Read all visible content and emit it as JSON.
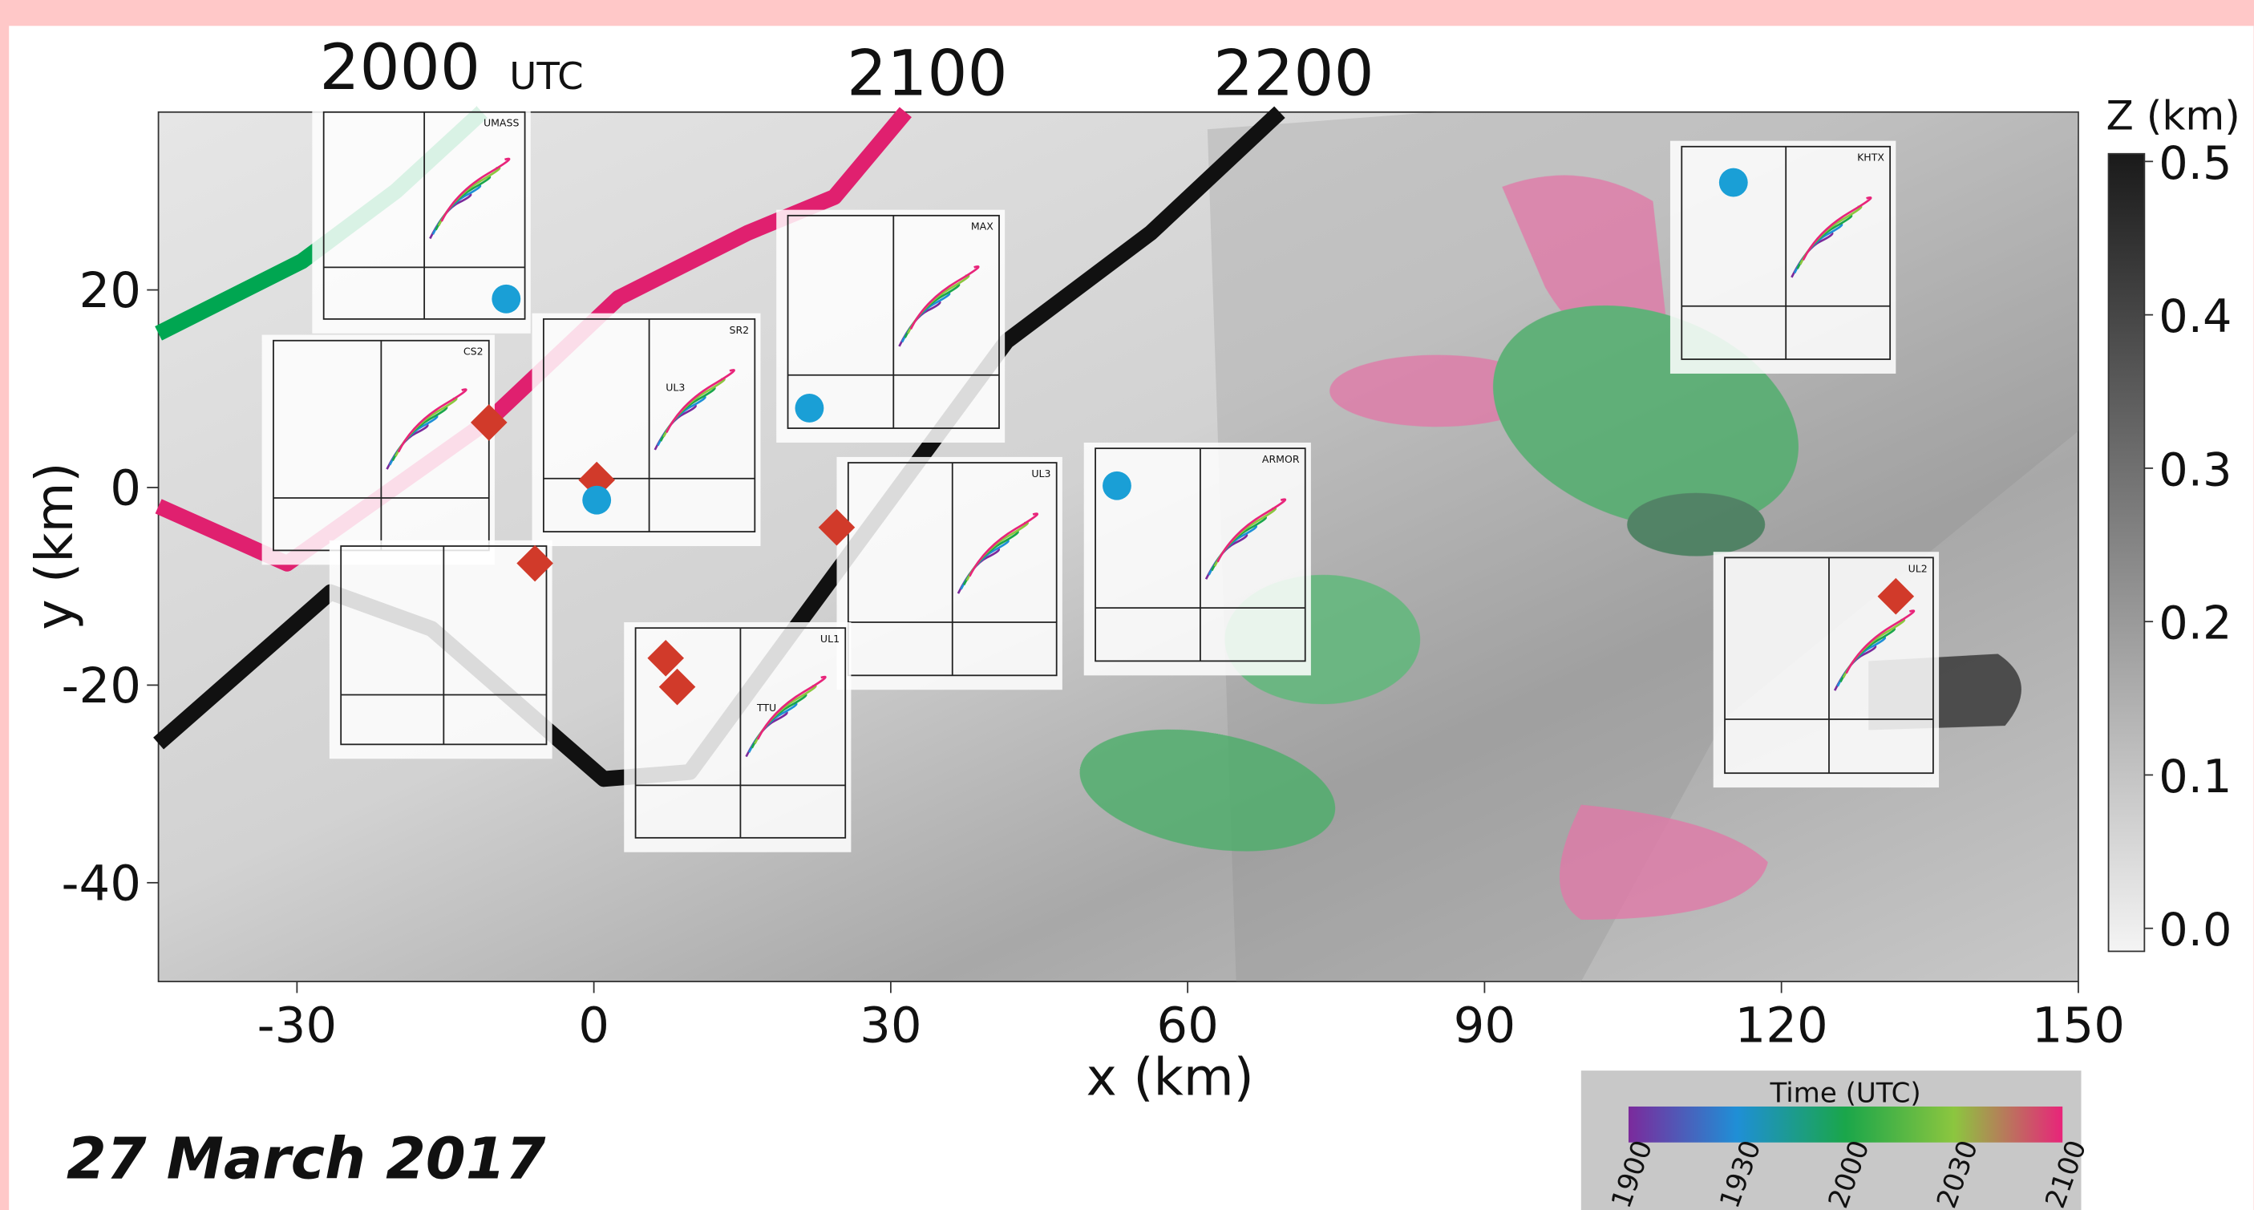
{
  "chart_data": {
    "type": "line",
    "time_labels": [
      "2000",
      "UTC",
      "2100",
      "2200"
    ],
    "x_label": "x (km)",
    "y_label": "y (km)",
    "xlim": [
      -44,
      150
    ],
    "xticks": [
      -30,
      0,
      30,
      60,
      90,
      120,
      150
    ],
    "ylim": [
      -50,
      38
    ],
    "yticks": [
      -40,
      -20,
      0,
      20
    ],
    "series": [
      {
        "color": "#00a651",
        "x": [
          -44,
          -29.5,
          -20,
          -11.3
        ],
        "y": [
          15.6,
          22.9,
          30,
          38
        ]
      },
      {
        "color": "#e0206f",
        "x": [
          -44,
          -31,
          -10.6,
          2.5,
          15.6,
          24.3,
          31.5
        ],
        "y": [
          -1.9,
          -7.7,
          6.8,
          19.2,
          25.8,
          29.4,
          38
        ]
      },
      {
        "color": "#111111",
        "x": [
          -44,
          -26.6,
          -16.4,
          1,
          9.7,
          21.4,
          41.7,
          56.3,
          69.3
        ],
        "y": [
          -25.9,
          -10.6,
          -14.3,
          -29.5,
          -28.8,
          -12.8,
          14.8,
          25.8,
          38
        ]
      }
    ],
    "insets": [
      [
        "UMASS"
      ],
      [
        "CS2"
      ],
      [
        "SR2",
        "UL3"
      ],
      [
        "MAX"
      ],
      [
        "UL3"
      ],
      [
        "ARMOR"
      ],
      [
        "KHTX"
      ],
      [
        "UL2"
      ],
      [
        "UL1",
        "TTU"
      ]
    ],
    "z_colorbar": {
      "label": "Z (km)",
      "lim": [
        0,
        0.52
      ],
      "ticks": [
        {
          "value": 0,
          "label": "0.0"
        },
        0.1,
        0.2,
        0.3,
        0.4,
        0.5
      ]
    },
    "time_colorbar": {
      "title": "Time (UTC)",
      "ticks": [
        "1900",
        "1930",
        "2000",
        "2030",
        "2100"
      ]
    },
    "date": "27 March 2017"
  }
}
